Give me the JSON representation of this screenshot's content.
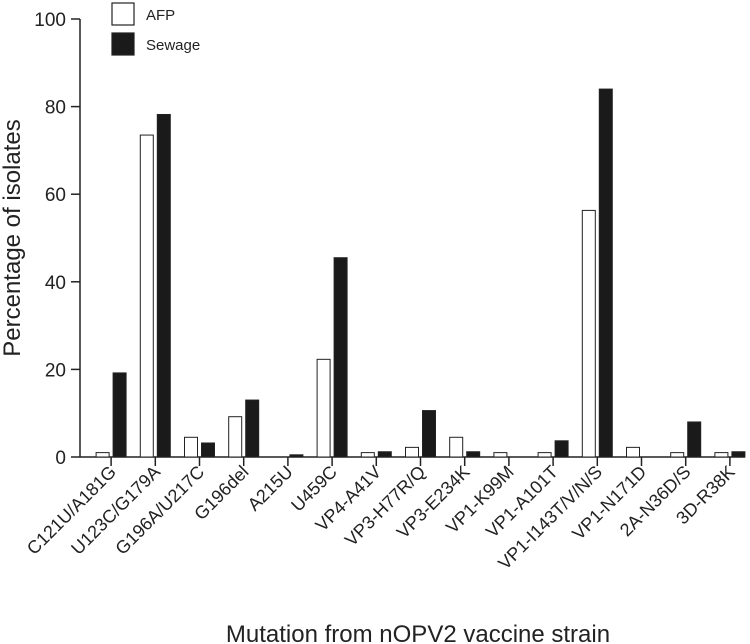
{
  "chart_data": {
    "type": "bar",
    "title": "",
    "xlabel": "Mutation from nOPV2 vaccine strain",
    "ylabel": "Percentage of isolates",
    "ylim": [
      0,
      100
    ],
    "yticks": [
      0,
      20,
      40,
      60,
      80,
      100
    ],
    "legend_position": "top-left",
    "categories": [
      "C121U/A181G",
      "U123C/G179A",
      "G196A/U217C",
      "G196del",
      "A215U",
      "U459C",
      "VP4-A41V",
      "VP3-H77R/Q",
      "VP3-E234K",
      "VP1-K99M",
      "VP1-A101T",
      "VP1-I143T/V/N/S",
      "VP1-N171D",
      "2A-N36D/S",
      "3D-R38K"
    ],
    "series": [
      {
        "name": "AFP",
        "fill": "#ffffff",
        "values": [
          1,
          73.5,
          4.5,
          9.2,
          0,
          22.3,
          1,
          2.2,
          4.5,
          1,
          1,
          56.3,
          2.2,
          1,
          1
        ]
      },
      {
        "name": "Sewage",
        "fill": "#1a1a1a",
        "values": [
          19.2,
          78.2,
          3.2,
          13,
          0.5,
          45.5,
          1.2,
          10.6,
          1.2,
          0,
          3.7,
          84,
          0,
          8,
          1.2
        ]
      }
    ]
  }
}
